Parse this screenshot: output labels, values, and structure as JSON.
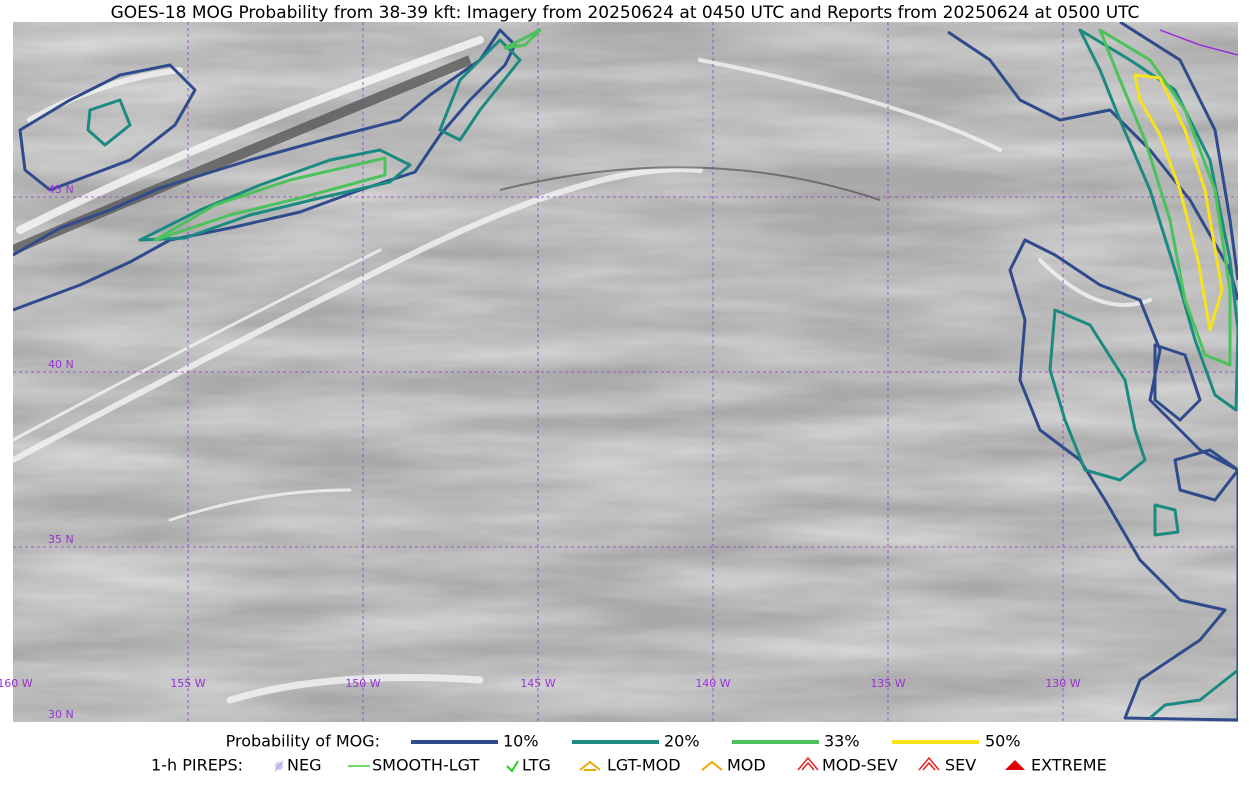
{
  "title": "GOES-18 MOG Probability from 38-39 kft: Imagery from 20250624 at 0450 UTC and Reports from 20250624 at 0500 UTC",
  "map": {
    "lat_labels": [
      "45 N",
      "40 N",
      "35 N",
      "30 N"
    ],
    "lon_labels": [
      "160 W",
      "155 W",
      "150 W",
      "145 W",
      "140 W",
      "135 W",
      "130 W"
    ]
  },
  "legend": {
    "probability": {
      "title": "Probability of MOG:",
      "items": [
        {
          "label": "10%",
          "color": "#2f4b8c"
        },
        {
          "label": "20%",
          "color": "#1b8a80"
        },
        {
          "label": "33%",
          "color": "#4cc25c"
        },
        {
          "label": "50%",
          "color": "#f7e21c"
        }
      ]
    },
    "pireps": {
      "title": "1-h PIREPS:",
      "items": [
        {
          "label": "NEG"
        },
        {
          "label": "SMOOTH-LGT"
        },
        {
          "label": "LTG"
        },
        {
          "label": "LGT-MOD"
        },
        {
          "label": "MOD"
        },
        {
          "label": "MOD-SEV"
        },
        {
          "label": "SEV"
        },
        {
          "label": "EXTREME"
        }
      ]
    }
  }
}
